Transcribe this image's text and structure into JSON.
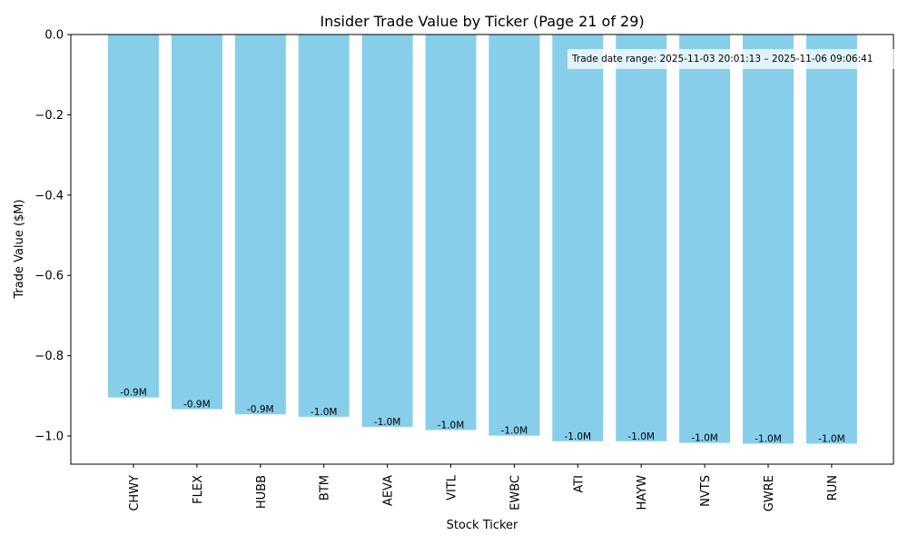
{
  "chart_data": {
    "type": "bar",
    "title": "Insider Trade Value by Ticker (Page 21 of 29)",
    "xlabel": "Stock Ticker",
    "ylabel": "Trade Value ($M)",
    "categories": [
      "CHWY",
      "FLEX",
      "HUBB",
      "BTM",
      "AEVA",
      "VITL",
      "EWBC",
      "ATI",
      "HAYW",
      "NVTS",
      "GWRE",
      "RUN"
    ],
    "values": [
      -0.904,
      -0.933,
      -0.946,
      -0.952,
      -0.977,
      -0.985,
      -0.999,
      -1.013,
      -1.013,
      -1.017,
      -1.019,
      -1.019
    ],
    "data_labels": [
      "-0.9M",
      "-0.9M",
      "-0.9M",
      "-1.0M",
      "-1.0M",
      "-1.0M",
      "-1.0M",
      "-1.0M",
      "-1.0M",
      "-1.0M",
      "-1.0M",
      "-1.0M"
    ],
    "ylim": [
      -1.07,
      0.0
    ],
    "yticks": [
      0.0,
      -0.2,
      -0.4,
      -0.6,
      -0.8,
      -1.0
    ],
    "ytick_labels": [
      "0.0",
      "−0.2",
      "−0.4",
      "−0.6",
      "−0.8",
      "−1.0"
    ],
    "grid": false,
    "annotation": "Trade date range: 2025-11-03 20:01:13 – 2025-11-06 09:06:41",
    "bar_color": "#87ceeb"
  }
}
